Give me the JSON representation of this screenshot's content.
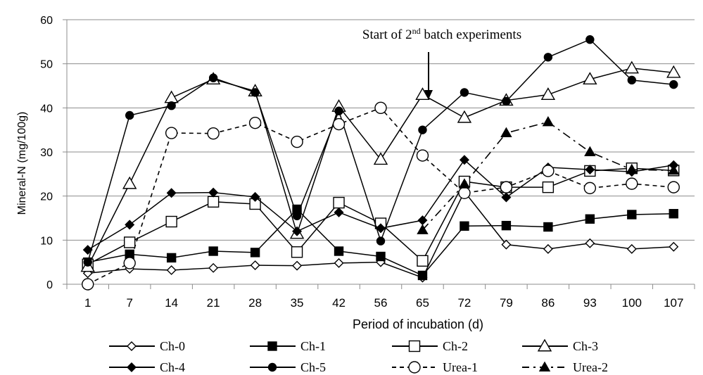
{
  "chart_data": {
    "type": "line",
    "title": "",
    "xlabel": "Period of incubation (d)",
    "ylabel": "Mineral-N (mg/100g)",
    "ylim": [
      0,
      60
    ],
    "yticks": [
      0,
      10,
      20,
      30,
      40,
      50,
      60
    ],
    "categories": [
      "1",
      "7",
      "14",
      "21",
      "28",
      "35",
      "42",
      "56",
      "65",
      "72",
      "79",
      "86",
      "93",
      "100",
      "107"
    ],
    "grid": "horizontal",
    "legend_position": "bottom",
    "annotation": {
      "text_pre": "Start of 2",
      "text_sup": "nd",
      "text_post": " batch experiments",
      "category": "65"
    },
    "series": [
      {
        "name": "Ch-0",
        "marker": "diamond-open",
        "dash": "solid",
        "values": [
          2.5,
          3.5,
          3.2,
          3.7,
          4.3,
          4.2,
          4.8,
          5.0,
          1.5,
          21.0,
          9.0,
          8.0,
          9.3,
          8.0,
          8.5
        ]
      },
      {
        "name": "Ch-1",
        "marker": "square-filled",
        "dash": "solid",
        "values": [
          5.0,
          6.8,
          6.0,
          7.5,
          7.2,
          17.0,
          7.5,
          6.3,
          2.0,
          13.2,
          13.3,
          13.0,
          14.8,
          15.8,
          16.0
        ]
      },
      {
        "name": "Ch-2",
        "marker": "square-open",
        "dash": "solid",
        "values": [
          4.5,
          9.5,
          14.2,
          18.7,
          18.2,
          7.3,
          18.5,
          13.8,
          5.3,
          23.3,
          22.0,
          22.0,
          25.7,
          26.3,
          25.8
        ]
      },
      {
        "name": "Ch-3",
        "marker": "triangle-open",
        "dash": "solid",
        "values": [
          4.0,
          22.8,
          42.3,
          46.5,
          43.8,
          11.5,
          40.3,
          28.3,
          43.0,
          37.8,
          41.7,
          43.0,
          46.5,
          49.0,
          48.0
        ]
      },
      {
        "name": "Ch-4",
        "marker": "diamond-filled",
        "dash": "solid",
        "values": [
          7.8,
          13.5,
          20.7,
          20.8,
          19.8,
          12.0,
          16.3,
          12.7,
          14.5,
          28.2,
          19.7,
          26.5,
          26.0,
          25.5,
          27.0
        ]
      },
      {
        "name": "Ch-5",
        "marker": "circle-filled",
        "dash": "solid",
        "values": [
          5.0,
          38.3,
          40.5,
          46.8,
          43.5,
          15.5,
          39.3,
          9.8,
          35.0,
          43.5,
          41.5,
          51.5,
          55.5,
          46.3,
          45.3
        ]
      },
      {
        "name": "Urea-1",
        "marker": "circle-open",
        "dash": "dashed",
        "values": [
          0.0,
          4.8,
          34.3,
          34.2,
          36.6,
          32.3,
          36.3,
          40.0,
          29.2,
          20.7,
          22.0,
          25.7,
          21.8,
          22.8,
          22.0
        ]
      },
      {
        "name": "Urea-2",
        "marker": "triangle-filled",
        "dash": "dashdot",
        "values": [
          null,
          null,
          null,
          null,
          null,
          null,
          null,
          null,
          12.3,
          22.7,
          34.3,
          36.8,
          30.0,
          26.0,
          25.8
        ]
      }
    ]
  }
}
